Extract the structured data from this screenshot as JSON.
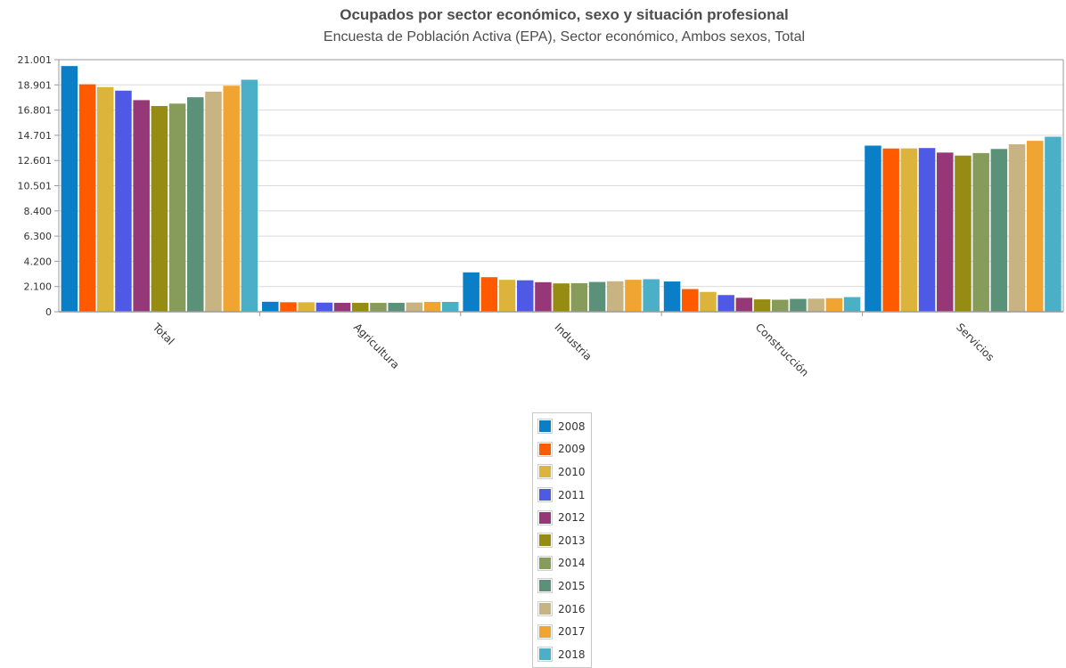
{
  "chart_data": {
    "type": "bar",
    "title": "Ocupados por sector económico, sexo y situación profesional",
    "subtitle": "Encuesta de Población Activa (EPA), Sector económico, Ambos sexos, Total",
    "xlabel": "",
    "ylabel": "",
    "ylim": [
      0,
      21001
    ],
    "yticks": [
      "0",
      "2.100",
      "4.200",
      "6.300",
      "8.400",
      "10.501",
      "12.601",
      "14.701",
      "16.801",
      "18.901",
      "21.001"
    ],
    "grid": true,
    "legend_position": "bottom-center",
    "categories": [
      "Total",
      "Agricultura",
      "Industria",
      "Construcción",
      "Servicios"
    ],
    "series": [
      {
        "name": "2008",
        "color": "#0a7fc8",
        "values": [
          20470,
          830,
          3280,
          2520,
          13840
        ]
      },
      {
        "name": "2009",
        "color": "#ff5a00",
        "values": [
          18950,
          790,
          2880,
          1890,
          13600
        ]
      },
      {
        "name": "2010",
        "color": "#dcb43c",
        "values": [
          18720,
          790,
          2660,
          1650,
          13610
        ]
      },
      {
        "name": "2011",
        "color": "#4e5ae6",
        "values": [
          18420,
          760,
          2620,
          1390,
          13640
        ]
      },
      {
        "name": "2012",
        "color": "#963778",
        "values": [
          17630,
          740,
          2460,
          1160,
          13260
        ]
      },
      {
        "name": "2013",
        "color": "#968c14",
        "values": [
          17140,
          740,
          2360,
          1030,
          13010
        ]
      },
      {
        "name": "2014",
        "color": "#879b5a",
        "values": [
          17340,
          740,
          2380,
          1000,
          13220
        ]
      },
      {
        "name": "2015",
        "color": "#5a9178",
        "values": [
          17870,
          740,
          2480,
          1070,
          13560
        ]
      },
      {
        "name": "2016",
        "color": "#c8b482",
        "values": [
          18340,
          770,
          2540,
          1090,
          13950
        ]
      },
      {
        "name": "2017",
        "color": "#f0a532",
        "values": [
          18830,
          820,
          2660,
          1130,
          14240
        ]
      },
      {
        "name": "2018",
        "color": "#4bafc8",
        "values": [
          19330,
          820,
          2710,
          1220,
          14580
        ]
      }
    ]
  }
}
